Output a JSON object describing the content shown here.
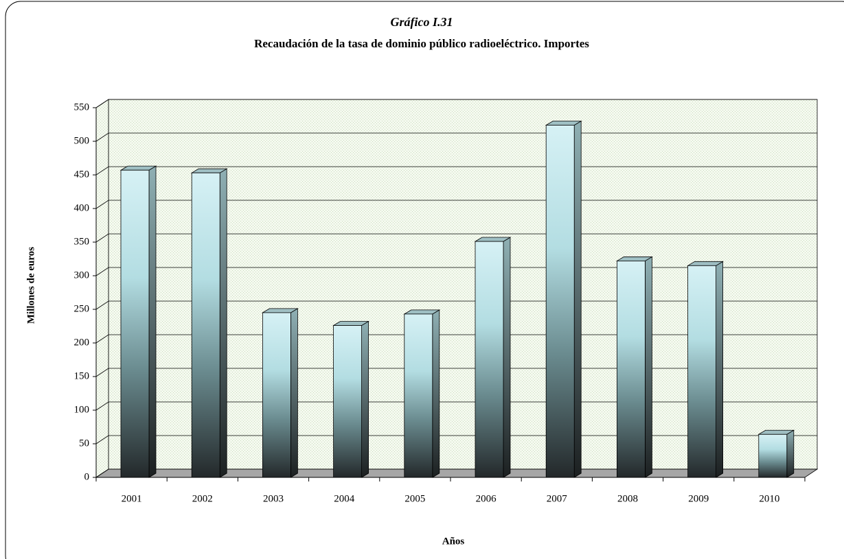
{
  "chart_data": {
    "type": "bar",
    "title": "Gráfico I.31",
    "subtitle": "Recaudación de la tasa de dominio público radioeléctrico.  Importes",
    "x_label": "Años",
    "y_label": "Millones de euros",
    "categories": [
      "2001",
      "2002",
      "2003",
      "2004",
      "2005",
      "2006",
      "2007",
      "2008",
      "2009",
      "2010"
    ],
    "values": [
      457,
      453,
      245,
      226,
      243,
      351,
      524,
      322,
      315,
      64
    ],
    "ylim": [
      0,
      550
    ],
    "yticks": [
      0,
      50,
      100,
      150,
      200,
      250,
      300,
      350,
      400,
      450,
      500,
      550
    ],
    "grid": true
  }
}
